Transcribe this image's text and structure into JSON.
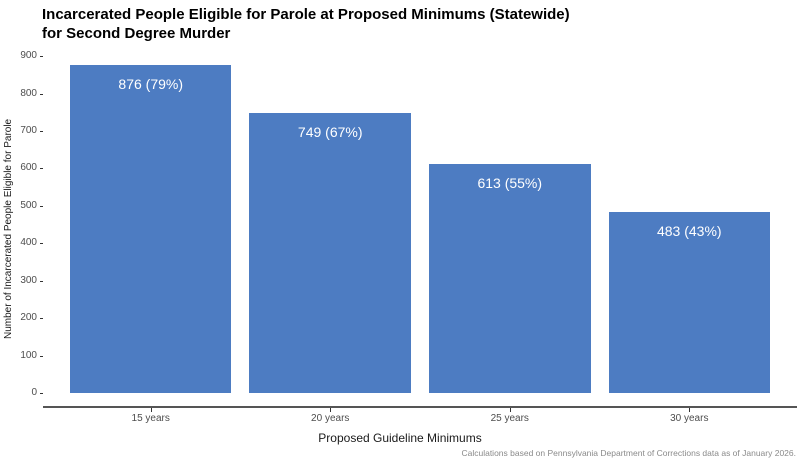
{
  "chart_data": {
    "type": "bar",
    "title_line1": "Incarcerated People Eligible for Parole at Proposed Minimums (Statewide)",
    "title_line2": "for Second Degree Murder",
    "xlabel": "Proposed Guideline Minimums",
    "ylabel": "Number of Incarcerated People Eligible for Parole",
    "caption": "Calculations based on Pennsylvania Department of Corrections data as of January 2026.",
    "categories": [
      "15 years",
      "20 years",
      "25 years",
      "30 years"
    ],
    "values": [
      876,
      749,
      613,
      483
    ],
    "bar_labels": [
      "876 (79%)",
      "749 (67%)",
      "613 (55%)",
      "483 (43%)"
    ],
    "yticks": [
      0,
      100,
      200,
      300,
      400,
      500,
      600,
      700,
      800,
      900
    ],
    "ylim": [
      0,
      900
    ],
    "bar_color": "#4d7cc2",
    "axis_line_color": "#555555",
    "grid": false,
    "legend": "none"
  }
}
